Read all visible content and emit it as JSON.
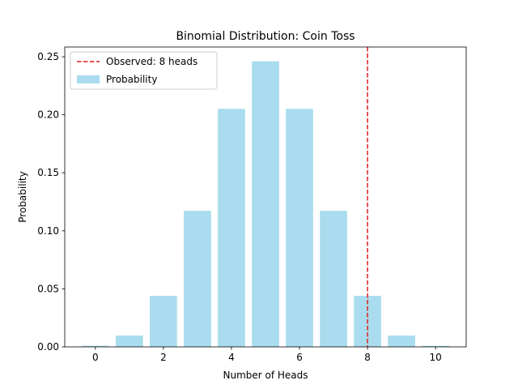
{
  "chart_data": {
    "type": "bar",
    "title": "Binomial Distribution: Coin Toss",
    "xlabel": "Number of Heads",
    "ylabel": "Probability",
    "categories": [
      0,
      1,
      2,
      3,
      4,
      5,
      6,
      7,
      8,
      9,
      10
    ],
    "values": [
      0.000977,
      0.009766,
      0.043945,
      0.117188,
      0.205078,
      0.246094,
      0.205078,
      0.117188,
      0.043945,
      0.009766,
      0.000977
    ],
    "bar_color": "#a8dcee",
    "xlim": [
      -0.9,
      10.9
    ],
    "ylim": [
      0,
      0.2584
    ],
    "xticks": [
      0,
      2,
      4,
      6,
      8,
      10
    ],
    "xtick_labels": [
      "0",
      "2",
      "4",
      "6",
      "8",
      "10"
    ],
    "yticks": [
      0,
      0.05,
      0.1,
      0.15,
      0.2,
      0.25
    ],
    "ytick_labels": [
      "0.00",
      "0.05",
      "0.10",
      "0.15",
      "0.20",
      "0.25"
    ],
    "observed": {
      "x": 8,
      "label": "Observed: 8 heads",
      "color": "#e01b1b",
      "style": "dashed"
    },
    "legend": {
      "placement": "upper-left",
      "entries": [
        {
          "label": "Observed: 8 heads",
          "kind": "dashed-line",
          "color": "#e01b1b"
        },
        {
          "label": "Probability",
          "kind": "patch",
          "color": "#a8dcee"
        }
      ]
    },
    "grid": false
  }
}
